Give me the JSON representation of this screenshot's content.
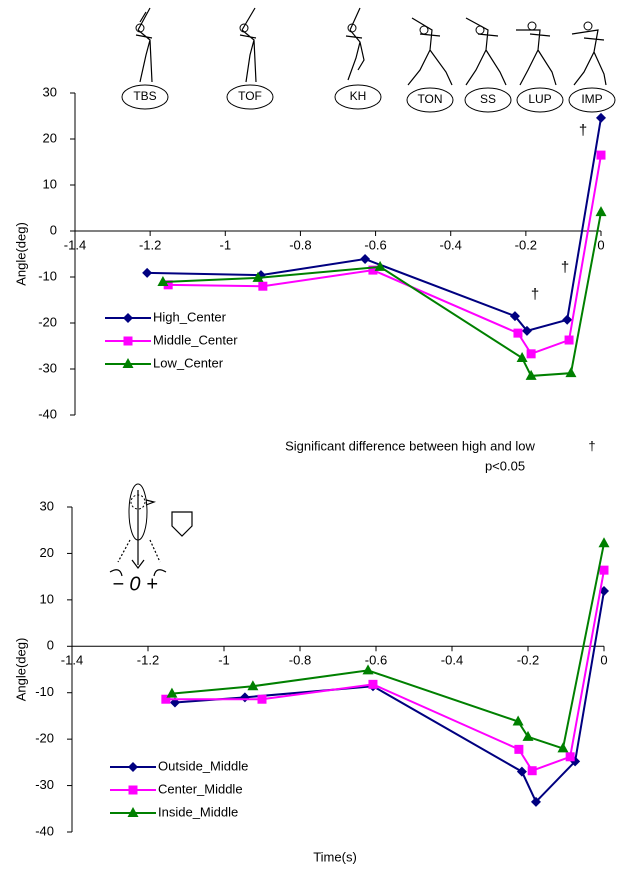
{
  "chart_data": [
    {
      "type": "line",
      "phase_labels": [
        "TBS",
        "TOF",
        "KH",
        "TON",
        "SS",
        "LUP",
        "IMP"
      ],
      "y_label": "Angle(deg)",
      "xlim": [
        -1.4,
        0
      ],
      "ylim": [
        -40,
        30
      ],
      "xticks": [
        -1.4,
        -1.2,
        -1,
        -0.8,
        -0.6,
        -0.4,
        -0.2,
        0
      ],
      "yticks": [
        -40,
        -30,
        -20,
        -10,
        0,
        10,
        20,
        30
      ],
      "legend": "lower left",
      "series": [
        {
          "name": "High_Center",
          "color": "#000080",
          "marker": "diamond",
          "x": [
            -1.208,
            -0.905,
            -0.628,
            -0.229,
            -0.197,
            -0.09,
            0
          ],
          "values": [
            -9.1,
            -9.6,
            -6.1,
            -18.5,
            -21.7,
            -19.3,
            24.6
          ]
        },
        {
          "name": "Middle_Center",
          "color": "#ff00ff",
          "marker": "square",
          "x": [
            -1.152,
            -0.9,
            -0.607,
            -0.221,
            -0.186,
            -0.085,
            0
          ],
          "values": [
            -11.7,
            -12,
            -8.5,
            -22.2,
            -26.7,
            -23.7,
            16.5
          ]
        },
        {
          "name": "Low_Center",
          "color": "#008000",
          "marker": "triangle",
          "x": [
            -1.166,
            -0.913,
            -0.588,
            -0.21,
            -0.186,
            -0.08,
            0
          ],
          "values": [
            -11.1,
            -10.2,
            -7.8,
            -27.6,
            -31.5,
            -30.9,
            4.1
          ]
        }
      ],
      "significance_marks": [
        "†",
        "†",
        "†"
      ],
      "note": "Significant difference between high and low",
      "note_symbol": "†",
      "note_p": "p<0.05"
    },
    {
      "type": "line",
      "y_label": "Angle(deg)",
      "x_label": "Time(s)",
      "icon_label": "− 0 +",
      "xlim": [
        -1.4,
        0
      ],
      "ylim": [
        -40,
        30
      ],
      "xticks": [
        -1.4,
        -1.2,
        -1,
        -0.8,
        -0.6,
        -0.4,
        -0.2,
        0
      ],
      "yticks": [
        -40,
        -30,
        -20,
        -10,
        0,
        10,
        20,
        30
      ],
      "legend": "lower left",
      "series": [
        {
          "name": "Outside_Middle",
          "color": "#000080",
          "marker": "diamond",
          "x": [
            -1.129,
            -0.945,
            -0.608,
            -0.216,
            -0.179,
            -0.076,
            0
          ],
          "values": [
            -12.1,
            -11,
            -8.6,
            -27,
            -33.5,
            -24.8,
            11.9
          ]
        },
        {
          "name": "Center_Middle",
          "color": "#ff00ff",
          "marker": "square",
          "x": [
            -1.153,
            -0.9,
            -0.608,
            -0.224,
            -0.189,
            -0.089,
            0
          ],
          "values": [
            -11.4,
            -11.4,
            -8.2,
            -22.2,
            -26.8,
            -23.8,
            16.4
          ]
        },
        {
          "name": "Inside_Middle",
          "color": "#008000",
          "marker": "triangle",
          "x": [
            -1.137,
            -0.924,
            -0.621,
            -0.226,
            -0.2,
            -0.108,
            0
          ],
          "values": [
            -10.2,
            -8.6,
            -5.2,
            -16.2,
            -19.5,
            -22,
            22.2
          ]
        }
      ]
    }
  ]
}
